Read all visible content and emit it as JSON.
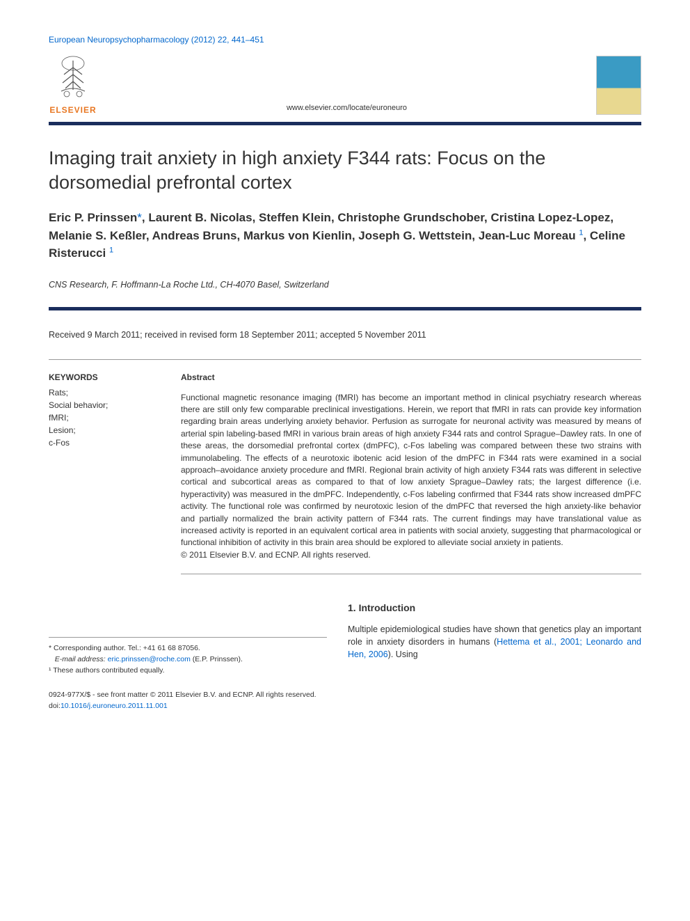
{
  "journal_ref": "European Neuropsychopharmacology (2012) 22, 441–451",
  "publisher_name": "ELSEVIER",
  "journal_url": "www.elsevier.com/locate/euroneuro",
  "colors": {
    "link": "#0066cc",
    "rule": "#1a2d5c",
    "publisher": "#e87722",
    "text": "#333333",
    "cover_top": "#3a9bc4",
    "cover_bottom": "#e8d890"
  },
  "article": {
    "title": "Imaging trait anxiety in high anxiety F344 rats: Focus on the dorsomedial prefrontal cortex",
    "authors_html": "Eric P. Prinssen<span class='ast'>*</span>, Laurent B. Nicolas, Steffen Klein, Christophe Grundschober, Cristina Lopez-Lopez, Melanie S. Keßler, Andreas Bruns, Markus von Kienlin, Joseph G. Wettstein, Jean-Luc Moreau <span class='sup'>1</span>, Celine Risterucci <span class='sup'>1</span>",
    "affiliation": "CNS Research, F. Hoffmann-La Roche Ltd., CH-4070 Basel, Switzerland",
    "received": "Received 9 March 2011; received in revised form 18 September 2011; accepted 5 November 2011"
  },
  "keywords": {
    "heading": "KEYWORDS",
    "items": [
      "Rats;",
      "Social behavior;",
      "fMRI;",
      "Lesion;",
      "c-Fos"
    ]
  },
  "abstract": {
    "heading": "Abstract",
    "text": "Functional magnetic resonance imaging (fMRI) has become an important method in clinical psychiatry research whereas there are still only few comparable preclinical investigations. Herein, we report that fMRI in rats can provide key information regarding brain areas underlying anxiety behavior. Perfusion as surrogate for neuronal activity was measured by means of arterial spin labeling-based fMRI in various brain areas of high anxiety F344 rats and control Sprague–Dawley rats. In one of these areas, the dorsomedial prefrontal cortex (dmPFC), c-Fos labeling was compared between these two strains with immunolabeling. The effects of a neurotoxic ibotenic acid lesion of the dmPFC in F344 rats were examined in a social approach–avoidance anxiety procedure and fMRI. Regional brain activity of high anxiety F344 rats was different in selective cortical and subcortical areas as compared to that of low anxiety Sprague–Dawley rats; the largest difference (i.e. hyperactivity) was measured in the dmPFC. Independently, c-Fos labeling confirmed that F344 rats show increased dmPFC activity. The functional role was confirmed by neurotoxic lesion of the dmPFC that reversed the high anxiety-like behavior and partially normalized the brain activity pattern of F344 rats. The current findings may have translational value as increased activity is reported in an equivalent cortical area in patients with social anxiety, suggesting that pharmacological or functional inhibition of activity in this brain area should be explored to alleviate social anxiety in patients.",
    "copyright": "© 2011 Elsevier B.V. and ECNP. All rights reserved."
  },
  "introduction": {
    "heading": "1. Introduction",
    "text_pre": "Multiple epidemiological studies have shown that genetics play an important role in anxiety disorders in humans (",
    "ref": "Hettema et al., 2001; Leonardo and Hen, 2006",
    "text_post": "). Using"
  },
  "footnotes": {
    "corresponding": "* Corresponding author. Tel.: +41 61 68 87056.",
    "email_label": "E-mail address: ",
    "email": "eric.prinssen@roche.com",
    "email_suffix": " (E.P. Prinssen).",
    "equal": "¹ These authors contributed equally."
  },
  "footer": {
    "front_matter": "0924-977X/$ - see front matter © 2011 Elsevier B.V. and ECNP. All rights reserved.",
    "doi_label": "doi:",
    "doi": "10.1016/j.euroneuro.2011.11.001"
  }
}
